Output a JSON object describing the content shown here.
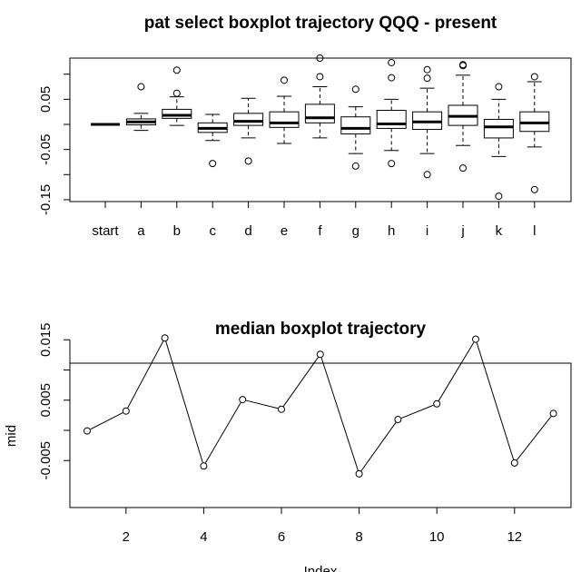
{
  "chart_data": [
    {
      "type": "boxplot",
      "title": "pat select boxplot trajectory QQQ - present",
      "xlabel": "",
      "ylabel": "",
      "categories": [
        "start",
        "a",
        "b",
        "c",
        "d",
        "e",
        "f",
        "g",
        "h",
        "i",
        "j",
        "k",
        "l"
      ],
      "yticks": [
        "-0.15",
        "-0.05",
        "0.05"
      ],
      "ylim": [
        -0.15,
        0.15
      ],
      "boxes": [
        {
          "whisker_low": 0.0,
          "q1": 0.0,
          "median": 0.0,
          "q3": 0.0,
          "whisker_high": 0.0,
          "outliers": []
        },
        {
          "whisker_low": -0.012,
          "q1": -0.001,
          "median": 0.005,
          "q3": 0.011,
          "whisker_high": 0.022,
          "outliers": [
            0.075
          ]
        },
        {
          "whisker_low": -0.002,
          "q1": 0.012,
          "median": 0.018,
          "q3": 0.03,
          "whisker_high": 0.055,
          "outliers": [
            0.108,
            0.062
          ]
        },
        {
          "whisker_low": -0.032,
          "q1": -0.016,
          "median": -0.008,
          "q3": 0.003,
          "whisker_high": 0.02,
          "outliers": [
            -0.078
          ]
        },
        {
          "whisker_low": -0.027,
          "q1": -0.002,
          "median": 0.006,
          "q3": 0.022,
          "whisker_high": 0.052,
          "outliers": [
            -0.073
          ]
        },
        {
          "whisker_low": -0.038,
          "q1": -0.006,
          "median": 0.003,
          "q3": 0.025,
          "whisker_high": 0.056,
          "outliers": [
            0.088
          ]
        },
        {
          "whisker_low": -0.027,
          "q1": 0.003,
          "median": 0.013,
          "q3": 0.04,
          "whisker_high": 0.075,
          "outliers": [
            0.132,
            0.095
          ]
        },
        {
          "whisker_low": -0.058,
          "q1": -0.019,
          "median": -0.008,
          "q3": 0.015,
          "whisker_high": 0.035,
          "outliers": [
            0.07,
            -0.083
          ]
        },
        {
          "whisker_low": -0.052,
          "q1": -0.008,
          "median": 0.001,
          "q3": 0.028,
          "whisker_high": 0.05,
          "outliers": [
            0.123,
            0.093,
            -0.078
          ]
        },
        {
          "whisker_low": -0.058,
          "q1": -0.01,
          "median": 0.005,
          "q3": 0.025,
          "whisker_high": 0.072,
          "outliers": [
            0.109,
            0.092,
            -0.1
          ]
        },
        {
          "whisker_low": -0.042,
          "q1": -0.002,
          "median": 0.016,
          "q3": 0.038,
          "whisker_high": 0.098,
          "outliers": [
            0.119,
            0.117,
            -0.087
          ]
        },
        {
          "whisker_low": -0.064,
          "q1": -0.027,
          "median": -0.005,
          "q3": 0.01,
          "whisker_high": 0.05,
          "outliers": [
            0.075,
            -0.143
          ]
        },
        {
          "whisker_low": -0.045,
          "q1": -0.014,
          "median": 0.003,
          "q3": 0.025,
          "whisker_high": 0.085,
          "outliers": [
            0.095,
            -0.13
          ]
        }
      ]
    },
    {
      "type": "line",
      "title": "median boxplot trajectory",
      "xlabel": "Index",
      "ylabel": "mid",
      "x": [
        1,
        2,
        3,
        4,
        5,
        6,
        7,
        8,
        9,
        10,
        11,
        12,
        13
      ],
      "y": [
        -0.0001,
        0.0032,
        0.0153,
        -0.0059,
        0.0051,
        0.0035,
        0.0126,
        -0.0072,
        0.0018,
        0.0044,
        0.0151,
        -0.0054,
        0.0028
      ],
      "xticks": [
        "2",
        "4",
        "6",
        "8",
        "10",
        "12"
      ],
      "yticks": [
        "-0.005",
        "0.005",
        "0.015"
      ],
      "markers": "open-circle",
      "line": true
    }
  ]
}
